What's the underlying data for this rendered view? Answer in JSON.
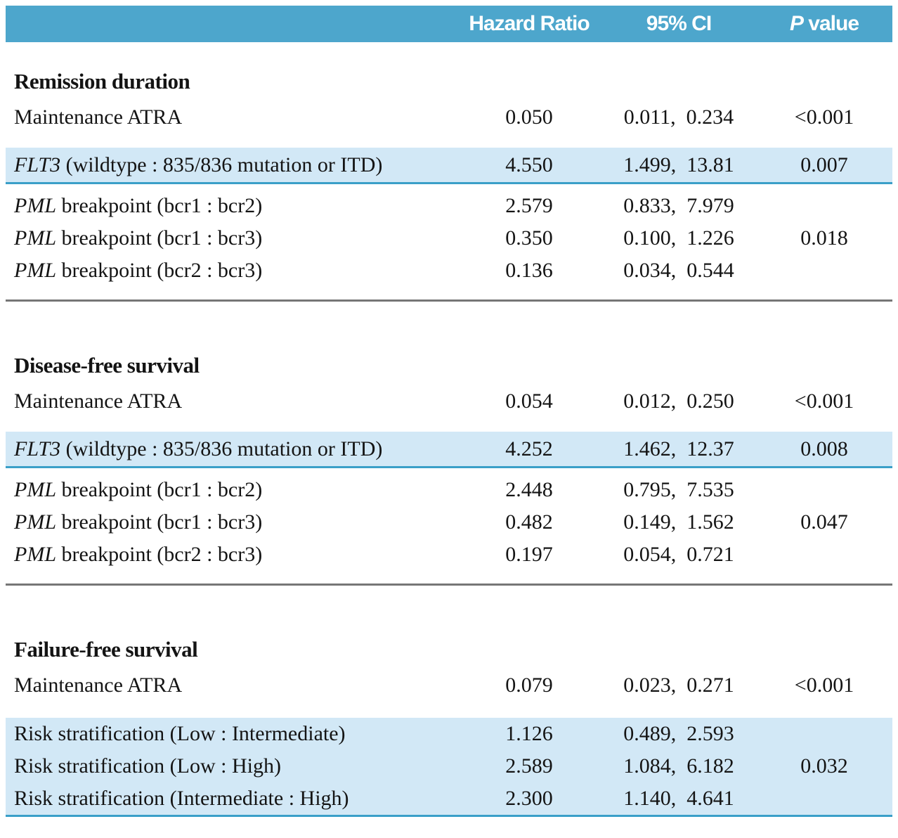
{
  "header": {
    "hazard_ratio": "Hazard Ratio",
    "ci": "95% CI",
    "p_italic": "P",
    "p_rest": " value"
  },
  "colors": {
    "header_bg": "#4da6cc",
    "highlight_bg": "#d2e8f6",
    "highlight_underline": "#3a9fc8",
    "separator": "#767676",
    "header_text": "#ffffff",
    "body_text": "#141414"
  },
  "sections": [
    {
      "title": "Remission duration",
      "groups": [
        {
          "p": "<0.001",
          "rows": [
            {
              "gene": "",
              "label": "Maintenance ATRA",
              "hr": "0.050",
              "ci": "0.011,  0.234"
            }
          ]
        },
        {
          "p": "0.007",
          "highlight": true,
          "rows": [
            {
              "gene": "FLT3",
              "label": " (wildtype : 835/836 mutation or ITD)",
              "hr": "4.550",
              "ci": "1.499,  13.81"
            }
          ]
        },
        {
          "p": "0.018",
          "rows": [
            {
              "gene": "PML",
              "label": " breakpoint (bcr1 : bcr2)",
              "hr": "2.579",
              "ci": "0.833,  7.979"
            },
            {
              "gene": "PML",
              "label": " breakpoint (bcr1 : bcr3)",
              "hr": "0.350",
              "ci": "0.100,  1.226"
            },
            {
              "gene": "PML",
              "label": " breakpoint (bcr2 : bcr3)",
              "hr": "0.136",
              "ci": "0.034,  0.544"
            }
          ]
        }
      ]
    },
    {
      "title": "Disease-free survival",
      "groups": [
        {
          "p": "<0.001",
          "rows": [
            {
              "gene": "",
              "label": "Maintenance ATRA",
              "hr": "0.054",
              "ci": "0.012,  0.250"
            }
          ]
        },
        {
          "p": "0.008",
          "highlight": true,
          "rows": [
            {
              "gene": "FLT3",
              "label": " (wildtype : 835/836 mutation or ITD)",
              "hr": "4.252",
              "ci": "1.462,  12.37"
            }
          ]
        },
        {
          "p": "0.047",
          "rows": [
            {
              "gene": "PML",
              "label": " breakpoint (bcr1 : bcr2)",
              "hr": "2.448",
              "ci": "0.795,  7.535"
            },
            {
              "gene": "PML",
              "label": " breakpoint (bcr1 : bcr3)",
              "hr": "0.482",
              "ci": "0.149,  1.562"
            },
            {
              "gene": "PML",
              "label": " breakpoint (bcr2 : bcr3)",
              "hr": "0.197",
              "ci": "0.054,  0.721"
            }
          ]
        }
      ]
    },
    {
      "title": "Failure-free survival",
      "groups": [
        {
          "p": "<0.001",
          "rows": [
            {
              "gene": "",
              "label": "Maintenance ATRA",
              "hr": "0.079",
              "ci": "0.023,  0.271"
            }
          ]
        },
        {
          "p": "0.032",
          "highlight": true,
          "rows": [
            {
              "gene": "",
              "label": "Risk stratification (Low : Intermediate)",
              "hr": "1.126",
              "ci": "0.489,  2.593"
            },
            {
              "gene": "",
              "label": "Risk stratification (Low : High)",
              "hr": "2.589",
              "ci": "1.084,  6.182"
            },
            {
              "gene": "",
              "label": "Risk stratification (Intermediate : High)",
              "hr": "2.300",
              "ci": "1.140,  4.641"
            }
          ]
        }
      ]
    }
  ]
}
